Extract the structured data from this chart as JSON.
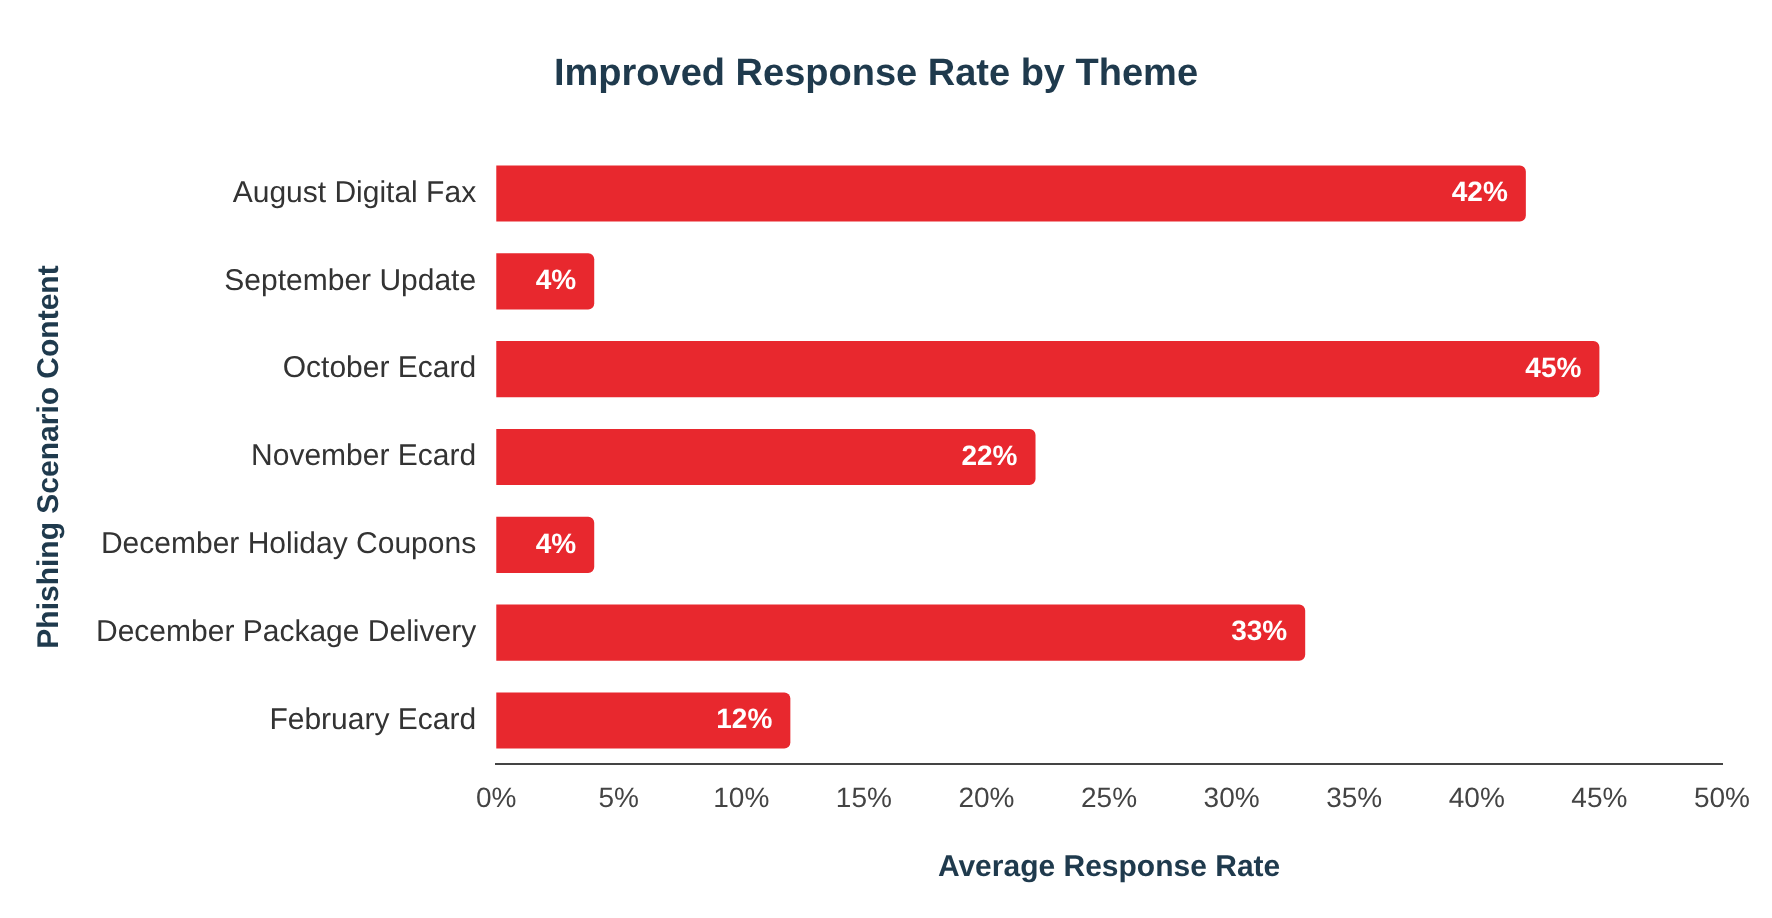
{
  "chart_data": {
    "type": "bar",
    "orientation": "horizontal",
    "title": "Improved Response Rate by Theme",
    "xlabel": "Average Response Rate",
    "ylabel": "Phishing Scenario Content",
    "categories": [
      "August Digital Fax",
      "September Update",
      "October Ecard",
      "November Ecard",
      "December Holiday Coupons",
      "December Package Delivery",
      "February Ecard"
    ],
    "values": [
      42,
      4,
      45,
      22,
      4,
      33,
      12
    ],
    "value_labels": [
      "42%",
      "4%",
      "45%",
      "22%",
      "4%",
      "33%",
      "12%"
    ],
    "color": "#e8282e",
    "xlim": [
      0,
      50
    ],
    "xticks": [
      {
        "value": 0,
        "label": "0%"
      },
      {
        "value": 5,
        "label": "5%"
      },
      {
        "value": 10,
        "label": "10%"
      },
      {
        "value": 15,
        "label": "15%"
      },
      {
        "value": 20,
        "label": "20%"
      },
      {
        "value": 25,
        "label": "25%"
      },
      {
        "value": 30,
        "label": "30%"
      },
      {
        "value": 35,
        "label": "35%"
      },
      {
        "value": 40,
        "label": "40%"
      },
      {
        "value": 45,
        "label": "45%"
      },
      {
        "value": 50,
        "label": "50%"
      }
    ],
    "grid": false,
    "legend": false
  }
}
